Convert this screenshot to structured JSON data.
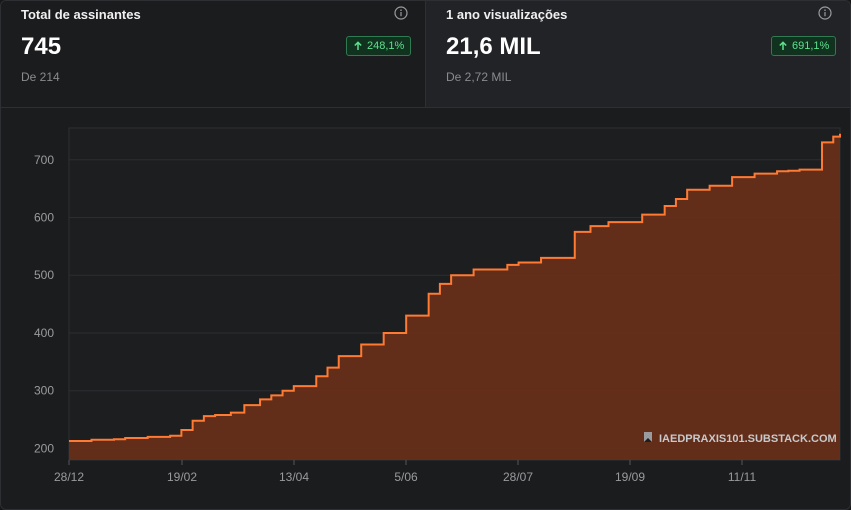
{
  "cards": [
    {
      "title": "Total de assinantes",
      "value": "745",
      "badge": "248,1%",
      "sub": "De 214"
    },
    {
      "title": "1 ano visualizações",
      "value": "21,6 MIL",
      "badge": "691,1%",
      "sub": "De 2,72 MIL"
    }
  ],
  "colors": {
    "line": "#ff7a33",
    "fill": "#6a3018",
    "badge_text": "#5fe08e"
  },
  "watermark": "IAEDPRAXIS101.SUBSTACK.COM",
  "chart_data": {
    "type": "area",
    "x_ticks": [
      "28/12",
      "19/02",
      "13/04",
      "5/06",
      "28/07",
      "19/09",
      "11/11"
    ],
    "y_ticks": [
      200,
      300,
      400,
      500,
      600,
      700
    ],
    "ylim": [
      180,
      755
    ],
    "xlim": [
      0,
      343
    ],
    "x": [
      0,
      10,
      20,
      25,
      35,
      45,
      50,
      55,
      60,
      65,
      72,
      78,
      85,
      90,
      95,
      100,
      110,
      115,
      120,
      130,
      140,
      150,
      160,
      165,
      170,
      180,
      195,
      200,
      210,
      225,
      232,
      240,
      255,
      265,
      270,
      275,
      285,
      295,
      305,
      315,
      320,
      325,
      335,
      340,
      343
    ],
    "y": [
      213,
      215,
      216,
      218,
      220,
      222,
      232,
      248,
      256,
      258,
      262,
      275,
      285,
      292,
      300,
      308,
      325,
      340,
      360,
      380,
      400,
      430,
      468,
      485,
      500,
      510,
      518,
      522,
      530,
      575,
      585,
      592,
      605,
      620,
      632,
      648,
      655,
      670,
      676,
      680,
      681,
      683,
      730,
      740,
      745
    ]
  }
}
